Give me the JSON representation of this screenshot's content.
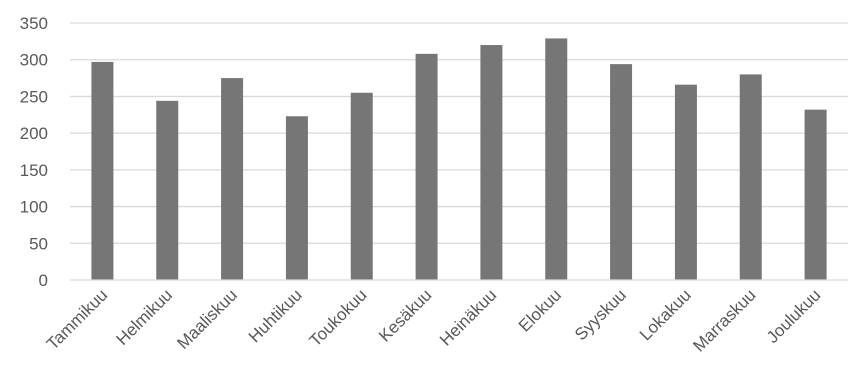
{
  "chart_data": {
    "type": "bar",
    "categories": [
      "Tammikuu",
      "Helmikuu",
      "Maaliskuu",
      "Huhtikuu",
      "Toukokuu",
      "Kesäkuu",
      "Heinäkuu",
      "Elokuu",
      "Syyskuu",
      "Lokakuu",
      "Marraskuu",
      "Joulukuu"
    ],
    "values": [
      297,
      244,
      275,
      223,
      255,
      308,
      320,
      329,
      294,
      266,
      280,
      232
    ],
    "y_ticks": [
      "0",
      "50",
      "100",
      "150",
      "200",
      "250",
      "300",
      "350"
    ],
    "ylim": [
      0,
      350
    ],
    "grid": true,
    "legend": "none",
    "bar_color": "#767676",
    "grid_color": "#d9d9d9",
    "title": "",
    "xlabel": "",
    "ylabel": ""
  }
}
